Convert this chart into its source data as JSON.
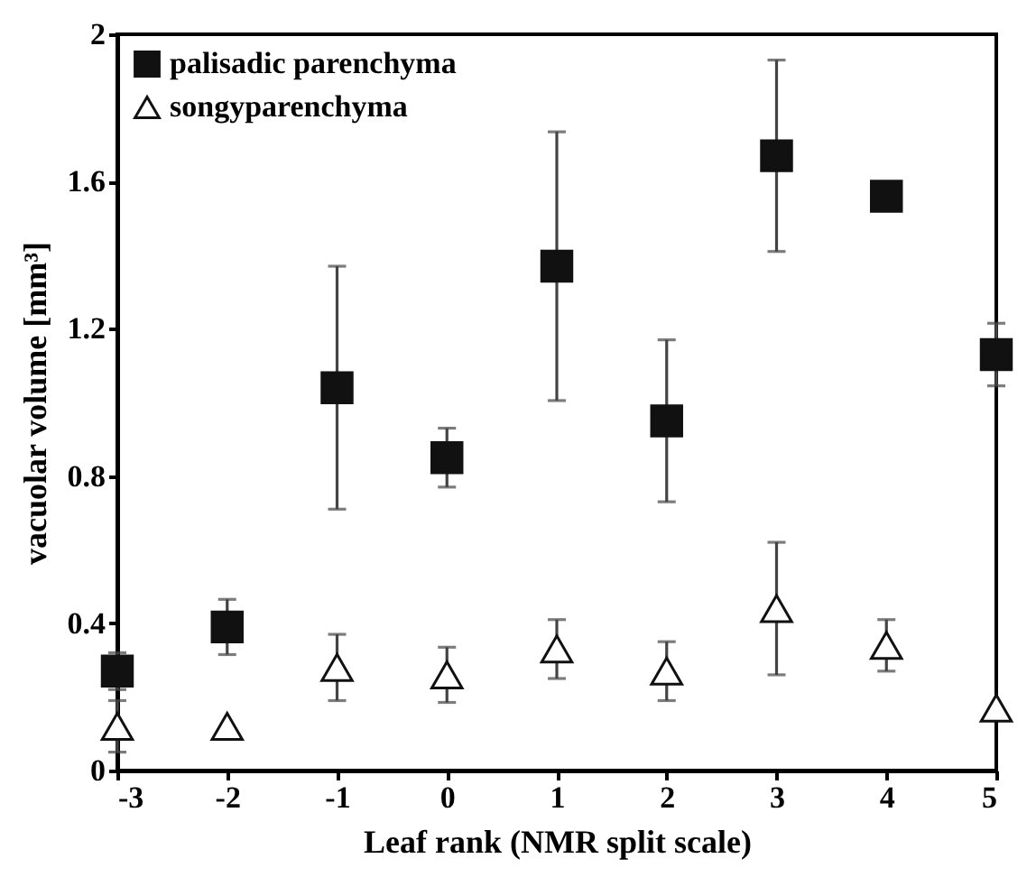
{
  "chart_data": {
    "type": "scatter",
    "xlabel": "Leaf rank (NMR split scale)",
    "ylabel": "vacuolar volume [mm³]",
    "x": [
      -3,
      -2,
      -1,
      0,
      1,
      2,
      3,
      4,
      5
    ],
    "series": [
      {
        "name": "palisadic parenchyma",
        "color": "#111111",
        "marker": "square",
        "values": [
          0.27,
          0.39,
          1.04,
          0.85,
          1.37,
          0.95,
          1.67,
          1.56,
          1.13
        ],
        "errors": [
          0.05,
          0.075,
          0.33,
          0.08,
          0.365,
          0.22,
          0.26,
          null,
          0.085
        ]
      },
      {
        "name": "songyparenchyma",
        "color": "#111111",
        "marker": "triangle",
        "values": [
          0.12,
          0.12,
          0.28,
          0.26,
          0.33,
          0.27,
          0.44,
          0.34,
          0.17
        ],
        "errors": [
          0.07,
          null,
          0.09,
          0.075,
          0.08,
          0.08,
          0.18,
          0.07,
          null
        ]
      }
    ],
    "xlim": [
      -3,
      5
    ],
    "xticks": [
      -3,
      -2,
      -1,
      0,
      1,
      2,
      3,
      4,
      5
    ],
    "ylim": [
      0,
      2
    ],
    "yticks": [
      0,
      0.4,
      0.8,
      1.2,
      1.6,
      2
    ],
    "grid": false,
    "legend": "top left"
  }
}
